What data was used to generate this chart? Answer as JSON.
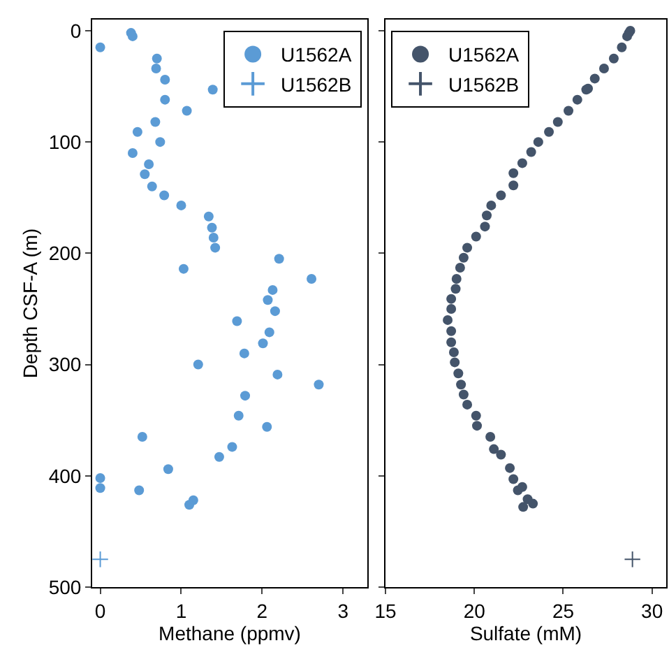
{
  "chart_data": [
    {
      "type": "scatter",
      "xlabel": "Methane (ppmv)",
      "ylabel": "Depth CSF-A (m)",
      "xlim": [
        -0.1,
        3.3
      ],
      "xticks": [
        0,
        1,
        2,
        3
      ],
      "ylim": [
        500,
        -10
      ],
      "yticks": [
        0,
        100,
        200,
        300,
        400,
        500
      ],
      "grid": false,
      "legend": "top right",
      "series": [
        {
          "name": "U1562A",
          "color": "#5b9bd5",
          "marker": "circle",
          "x": [
            0.38,
            0.4,
            0,
            0.7,
            0.69,
            0.8,
            1.39,
            0.8,
            1.07,
            0.68,
            0.46,
            0.74,
            0.4,
            0.6,
            0.55,
            0.64,
            0.79,
            1.0,
            1.34,
            1.38,
            1.4,
            1.42,
            2.21,
            1.03,
            2.61,
            2.13,
            2.07,
            2.16,
            1.69,
            2.09,
            2.01,
            1.78,
            1.21,
            2.19,
            2.7,
            1.79,
            1.71,
            2.06,
            0.52,
            1.63,
            1.47,
            0.84,
            0,
            0,
            0.48,
            1.15,
            1.1
          ],
          "values": [
            2,
            5,
            15,
            25,
            34,
            44,
            53,
            62,
            72,
            82,
            91,
            100,
            110,
            120,
            129,
            140,
            148,
            157,
            167,
            177,
            186,
            195,
            205,
            214,
            223,
            233,
            242,
            252,
            261,
            271,
            281,
            290,
            300,
            309,
            318,
            328,
            346,
            356,
            365,
            374,
            383,
            394,
            402,
            411,
            413,
            422,
            426
          ]
        },
        {
          "name": "U1562B",
          "color": "#5b9bd5",
          "marker": "cross",
          "x": [
            0
          ],
          "values": [
            475
          ]
        }
      ]
    },
    {
      "type": "scatter",
      "xlabel": "Sulfate (mM)",
      "xlim": [
        15,
        30.8
      ],
      "xticks": [
        15,
        20,
        25,
        30
      ],
      "ylim": [
        500,
        -10
      ],
      "yticks": [
        0,
        100,
        200,
        300,
        400,
        500
      ],
      "grid": false,
      "legend": "top left",
      "tick_labels": "x",
      "series": [
        {
          "name": "U1562A",
          "color": "#44546a",
          "marker": "circle",
          "x": [
            28.78,
            28.7,
            28.6,
            28.3,
            27.85,
            27.3,
            26.78,
            26.4,
            26.3,
            25.8,
            25.3,
            24.7,
            24.2,
            23.6,
            23.2,
            22.7,
            22.2,
            22.2,
            21.5,
            20.95,
            20.7,
            20.6,
            20.1,
            19.6,
            19.4,
            19.2,
            19.0,
            18.95,
            18.7,
            18.7,
            18.5,
            18.7,
            18.7,
            18.85,
            18.9,
            19.1,
            19.25,
            19.4,
            19.6,
            20.1,
            20.15,
            20.9,
            21.1,
            21.5,
            22.0,
            22.2,
            22.45,
            22.7,
            23.0,
            23.3,
            22.75
          ],
          "values": [
            0,
            2,
            5,
            15,
            25,
            34,
            43,
            52,
            53,
            62,
            72,
            82,
            91,
            100,
            109,
            119,
            128,
            139,
            148,
            157,
            166,
            176,
            185,
            195,
            204,
            213,
            223,
            232,
            241,
            250,
            260,
            270,
            280,
            289,
            298,
            308,
            318,
            327,
            336,
            346,
            355,
            365,
            376,
            381,
            393,
            403,
            413,
            410,
            421,
            425,
            428
          ]
        },
        {
          "name": "U1562B",
          "color": "#44546a",
          "marker": "cross",
          "x": [
            28.9
          ],
          "values": [
            475
          ]
        }
      ]
    }
  ]
}
